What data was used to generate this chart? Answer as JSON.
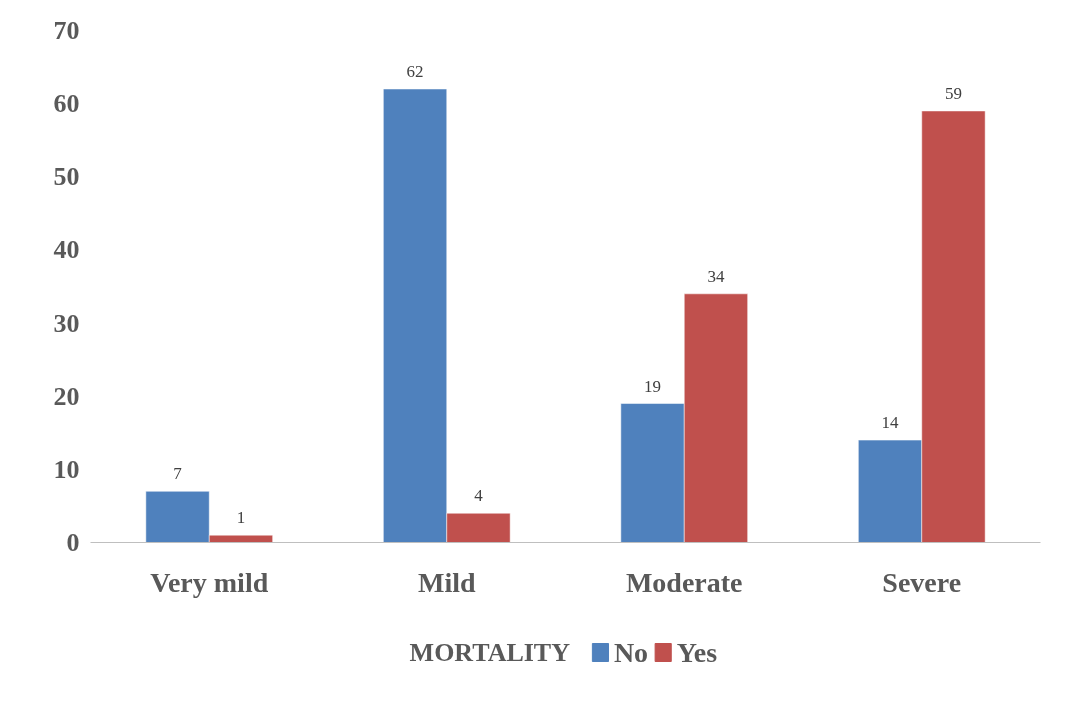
{
  "chart_data": {
    "type": "bar",
    "categories": [
      "Very mild",
      "Mild",
      "Moderate",
      "Severe"
    ],
    "series": [
      {
        "name": "No",
        "color": "#4f81bd",
        "values": [
          7,
          62,
          19,
          14
        ]
      },
      {
        "name": "Yes",
        "color": "#c0504d",
        "values": [
          1,
          4,
          34,
          59
        ]
      }
    ],
    "legend_title": "MORTALITY",
    "legend": "bottom",
    "ylim": [
      0,
      70
    ],
    "yticks": [
      0,
      10,
      20,
      30,
      40,
      50,
      60,
      70
    ],
    "grid": false,
    "data_labels": true
  }
}
